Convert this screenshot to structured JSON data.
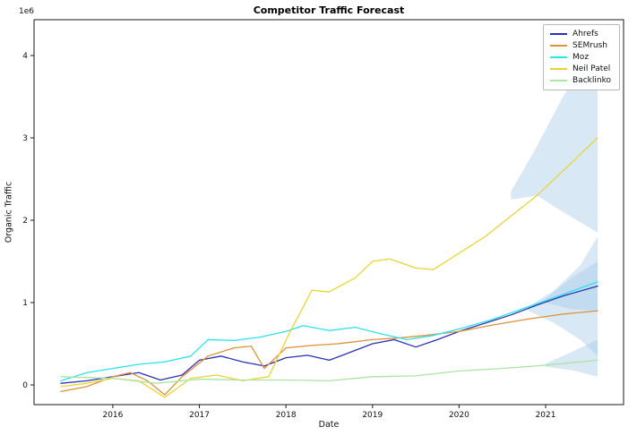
{
  "chart_data": {
    "type": "line",
    "title": "Competitor Traffic Forecast",
    "xlabel": "Date",
    "ylabel": "Organic Traffic",
    "y_offset_text": "1e6",
    "y_unit": "millions (1e6)",
    "grid": false,
    "legend_position": "upper right",
    "xlim": [
      2015.09,
      2021.9
    ],
    "ylim": [
      -0.239,
      4.435
    ],
    "xticks": [
      {
        "value": 2016,
        "label": "2016"
      },
      {
        "value": 2017,
        "label": "2017"
      },
      {
        "value": 2018,
        "label": "2018"
      },
      {
        "value": 2019,
        "label": "2019"
      },
      {
        "value": 2020,
        "label": "2020"
      },
      {
        "value": 2021,
        "label": "2021"
      }
    ],
    "yticks": [
      {
        "value": 0,
        "label": "0"
      },
      {
        "value": 1,
        "label": "1"
      },
      {
        "value": 2,
        "label": "2"
      },
      {
        "value": 3,
        "label": "3"
      },
      {
        "value": 4,
        "label": "4"
      }
    ],
    "band_color": "#a9cbe8",
    "series": [
      {
        "name": "Ahrefs",
        "color": "#2832b4",
        "x": [
          2015.4,
          2015.7,
          2016.0,
          2016.3,
          2016.55,
          2016.8,
          2017.0,
          2017.25,
          2017.5,
          2017.75,
          2018.0,
          2018.25,
          2018.5,
          2018.75,
          2019.0,
          2019.25,
          2019.5,
          2019.75,
          2020.0,
          2020.3,
          2020.6,
          2020.9,
          2021.2,
          2021.6
        ],
        "y": [
          0.02,
          0.05,
          0.1,
          0.15,
          0.06,
          0.12,
          0.3,
          0.35,
          0.28,
          0.23,
          0.33,
          0.36,
          0.3,
          0.4,
          0.5,
          0.55,
          0.46,
          0.55,
          0.65,
          0.75,
          0.85,
          0.97,
          1.08,
          1.2
        ]
      },
      {
        "name": "SEMrush",
        "color": "#de9138",
        "x": [
          2015.4,
          2015.7,
          2016.0,
          2016.2,
          2016.4,
          2016.6,
          2016.8,
          2017.1,
          2017.4,
          2017.6,
          2017.75,
          2018.0,
          2018.3,
          2018.6,
          2019.0,
          2019.3,
          2019.6,
          2020.0,
          2020.4,
          2020.8,
          2021.2,
          2021.6
        ],
        "y": [
          -0.08,
          -0.02,
          0.1,
          0.15,
          0.05,
          -0.12,
          0.1,
          0.35,
          0.45,
          0.47,
          0.2,
          0.45,
          0.48,
          0.5,
          0.55,
          0.57,
          0.6,
          0.65,
          0.73,
          0.8,
          0.86,
          0.9
        ]
      },
      {
        "name": "Moz",
        "color": "#2de2ee",
        "x": [
          2015.4,
          2015.7,
          2016.0,
          2016.3,
          2016.6,
          2016.9,
          2017.1,
          2017.4,
          2017.7,
          2018.0,
          2018.2,
          2018.5,
          2018.8,
          2019.1,
          2019.4,
          2019.7,
          2020.0,
          2020.4,
          2020.8,
          2021.2,
          2021.6
        ],
        "y": [
          0.05,
          0.15,
          0.2,
          0.25,
          0.28,
          0.35,
          0.55,
          0.54,
          0.58,
          0.65,
          0.72,
          0.66,
          0.7,
          0.62,
          0.55,
          0.6,
          0.68,
          0.8,
          0.95,
          1.1,
          1.25
        ]
      },
      {
        "name": "Neil Patel",
        "color": "#e8d535",
        "x": [
          2015.4,
          2015.7,
          2016.0,
          2016.3,
          2016.6,
          2016.9,
          2017.2,
          2017.5,
          2017.8,
          2018.05,
          2018.3,
          2018.5,
          2018.8,
          2019.0,
          2019.2,
          2019.5,
          2019.7,
          2020.0,
          2020.3,
          2020.6,
          2020.9,
          2021.2,
          2021.6
        ],
        "y": [
          -0.02,
          0.02,
          0.08,
          0.05,
          -0.15,
          0.08,
          0.12,
          0.05,
          0.1,
          0.65,
          1.15,
          1.13,
          1.3,
          1.5,
          1.53,
          1.42,
          1.4,
          1.6,
          1.8,
          2.05,
          2.3,
          2.6,
          3.0
        ]
      },
      {
        "name": "Backlinko",
        "color": "#a8e6a2",
        "x": [
          2015.4,
          2016.0,
          2016.5,
          2017.0,
          2017.5,
          2018.0,
          2018.5,
          2019.0,
          2019.5,
          2020.0,
          2020.5,
          2021.0,
          2021.6
        ],
        "y": [
          0.1,
          0.08,
          0.02,
          0.07,
          0.06,
          0.06,
          0.05,
          0.1,
          0.11,
          0.17,
          0.2,
          0.24,
          0.3
        ]
      }
    ],
    "bands": [
      {
        "series": "Neil Patel",
        "x": [
          2020.6,
          2020.9,
          2021.2,
          2021.6
        ],
        "lower": [
          2.25,
          2.3,
          2.1,
          1.85
        ],
        "upper": [
          2.35,
          2.9,
          3.5,
          4.15
        ]
      },
      {
        "series": "Ahrefs",
        "x": [
          2020.8,
          2021.1,
          2021.4,
          2021.6
        ],
        "lower": [
          0.9,
          0.75,
          0.55,
          0.35
        ],
        "upper": [
          0.95,
          1.15,
          1.45,
          1.8
        ]
      },
      {
        "series": "Moz",
        "x": [
          2021.0,
          2021.3,
          2021.6
        ],
        "lower": [
          1.0,
          0.92,
          0.9
        ],
        "upper": [
          1.05,
          1.3,
          1.5
        ]
      },
      {
        "series": "Backlinko",
        "x": [
          2021.0,
          2021.3,
          2021.6
        ],
        "lower": [
          0.22,
          0.18,
          0.1
        ],
        "upper": [
          0.26,
          0.4,
          0.55
        ]
      }
    ]
  }
}
